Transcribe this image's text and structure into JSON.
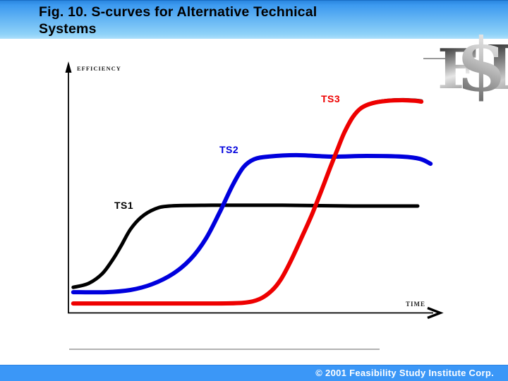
{
  "header": {
    "title": "Fig. 10.  S-curves for Alternative Technical\nSystems"
  },
  "logo": {
    "text": "F$I",
    "letters": [
      "F",
      "$",
      "I"
    ]
  },
  "footer": {
    "copyright": "© 2001 Feasibility Study Institute Corp."
  },
  "colors": {
    "header_gradient_top": "#2a87e0",
    "header_gradient_bottom": "#aee0fb",
    "footer_background": "#3b97f7",
    "footer_text": "#ffffff",
    "title_text": "#000000",
    "separator_gray": "#b2b2b2",
    "ts1_curve": "#000000",
    "ts2_curve": "#0000dd",
    "ts3_curve": "#ee0000"
  },
  "chart_data": {
    "type": "line",
    "title": "S-curves for Alternative Technical Systems",
    "xlabel": "TIME",
    "ylabel": "EFFICIENCY",
    "axis_ticks": "none (qualitative sketch, unlabeled axes)",
    "x_range_normalized": [
      0,
      100
    ],
    "y_range_normalized": [
      0,
      100
    ],
    "grid": false,
    "legend_position": "labels next to curves",
    "series": [
      {
        "name": "TS1",
        "color": "#000000",
        "stroke_width": 5,
        "plateau_efficiency_pct": 43.5,
        "points": [
          [
            1.3,
            10.3
          ],
          [
            5.4,
            11.8
          ],
          [
            9.2,
            15.8
          ],
          [
            12.1,
            21.6
          ],
          [
            14.4,
            27.3
          ],
          [
            16.9,
            33.9
          ],
          [
            19.8,
            38.8
          ],
          [
            23.3,
            42.0
          ],
          [
            27.5,
            43.4
          ],
          [
            39.0,
            43.7
          ],
          [
            58.3,
            43.7
          ],
          [
            77.5,
            43.4
          ],
          [
            95.2,
            43.4
          ]
        ]
      },
      {
        "name": "TS2",
        "color": "#0000dd",
        "stroke_width": 6,
        "plateau_efficiency_pct": 63.5,
        "points": [
          [
            1.3,
            8.3
          ],
          [
            10.2,
            8.3
          ],
          [
            16.9,
            9.2
          ],
          [
            22.7,
            11.5
          ],
          [
            28.5,
            15.8
          ],
          [
            33.3,
            21.8
          ],
          [
            37.5,
            30.2
          ],
          [
            41.3,
            41.1
          ],
          [
            44.8,
            52.0
          ],
          [
            47.7,
            59.2
          ],
          [
            50.6,
            62.4
          ],
          [
            54.4,
            63.5
          ],
          [
            62.1,
            64.1
          ],
          [
            71.7,
            63.5
          ],
          [
            81.3,
            63.8
          ],
          [
            91.0,
            63.5
          ],
          [
            95.8,
            62.6
          ],
          [
            98.7,
            60.6
          ]
        ]
      },
      {
        "name": "TS3",
        "color": "#ee0000",
        "stroke_width": 6,
        "plateau_efficiency_pct": 86.0,
        "ink_trace_shadow": true,
        "points": [
          [
            1.3,
            3.7
          ],
          [
            19.8,
            3.7
          ],
          [
            39.0,
            3.7
          ],
          [
            47.7,
            4.0
          ],
          [
            52.1,
            5.5
          ],
          [
            55.4,
            8.9
          ],
          [
            57.9,
            13.5
          ],
          [
            60.6,
            21.0
          ],
          [
            63.7,
            31.0
          ],
          [
            66.3,
            39.7
          ],
          [
            68.8,
            49.1
          ],
          [
            71.3,
            58.9
          ],
          [
            73.3,
            66.4
          ],
          [
            75.2,
            73.3
          ],
          [
            77.5,
            79.6
          ],
          [
            79.8,
            83.3
          ],
          [
            82.9,
            85.3
          ],
          [
            86.7,
            86.2
          ],
          [
            91.0,
            86.5
          ],
          [
            94.8,
            86.2
          ],
          [
            96.2,
            85.9
          ]
        ]
      }
    ]
  }
}
